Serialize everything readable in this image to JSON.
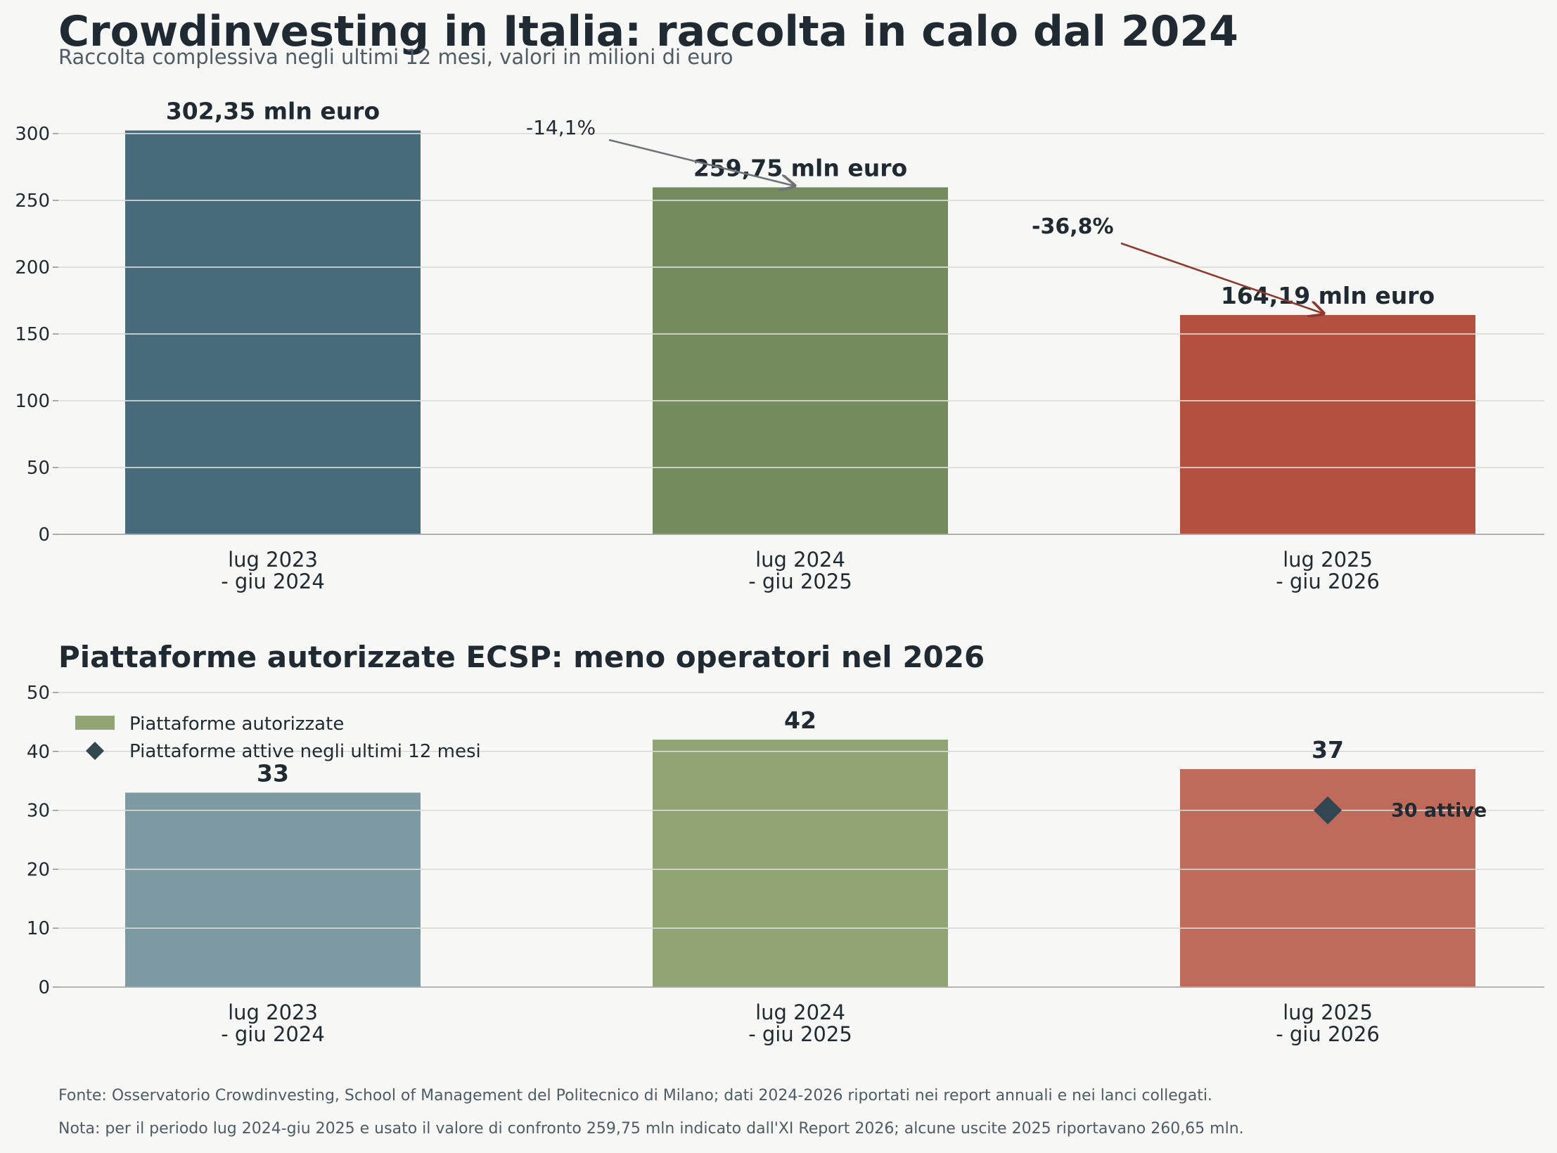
{
  "header": {
    "title": "Crowdinvesting in Italia: raccolta in calo dal 2024",
    "subtitle": "Raccolta complessiva negli ultimi 12 mesi, valori in milioni di euro"
  },
  "chart_data": [
    {
      "type": "bar",
      "title": "",
      "categories": [
        "lug 2023\n- giu 2024",
        "lug 2024\n- giu 2025",
        "lug 2025\n- giu 2026"
      ],
      "values": [
        302.35,
        259.75,
        164.19
      ],
      "value_labels": [
        "302,35 mln euro",
        "259,75 mln euro",
        "164,19 mln euro"
      ],
      "colors": [
        "#476b7a",
        "#748b5e",
        "#b35040"
      ],
      "ylim": [
        0,
        330
      ],
      "yticks": [
        0,
        50,
        100,
        150,
        200,
        250,
        300
      ],
      "grid": true,
      "annotations": [
        {
          "text": "-14,1%",
          "from_category": 0,
          "to_category": 1,
          "color": "#555555",
          "bold": false
        },
        {
          "text": "-36,8%",
          "from_category": 1,
          "to_category": 2,
          "color": "#8f3a2e",
          "bold": true
        }
      ]
    },
    {
      "type": "bar",
      "title": "Piattaforme autorizzate ECSP: meno operatori nel 2026",
      "categories": [
        "lug 2023\n- giu 2024",
        "lug 2024\n- giu 2025",
        "lug 2025\n- giu 2026"
      ],
      "series": [
        {
          "name": "Piattaforme autorizzate",
          "type": "bar",
          "values": [
            33,
            42,
            37
          ],
          "colors": [
            "#7d9aa2",
            "#91a574",
            "#bf6b5b"
          ]
        },
        {
          "name": "Piattaforme attive negli ultimi 12 mesi",
          "type": "scatter",
          "marker": "diamond",
          "color": "#324651",
          "values": [
            null,
            null,
            30
          ],
          "point_label": "30 attive"
        }
      ],
      "value_labels": [
        "33",
        "42",
        "37"
      ],
      "ylim": [
        0,
        50
      ],
      "yticks": [
        0,
        10,
        20,
        30,
        40,
        50
      ],
      "grid": true,
      "legend": "top-left",
      "legend_swatch_color": "#91a574"
    }
  ],
  "footer": {
    "source": "Fonte: Osservatorio Crowdinvesting, School of Management del Politecnico di Milano; dati 2024-2026 riportati nei report annuali e nei lanci collegati.",
    "note": "Nota: per il periodo lug 2024-giu 2025 e usato il valore di confronto 259,75 mln indicato dall'XI Report 2026; alcune uscite 2025 riportavano 260,65 mln."
  }
}
